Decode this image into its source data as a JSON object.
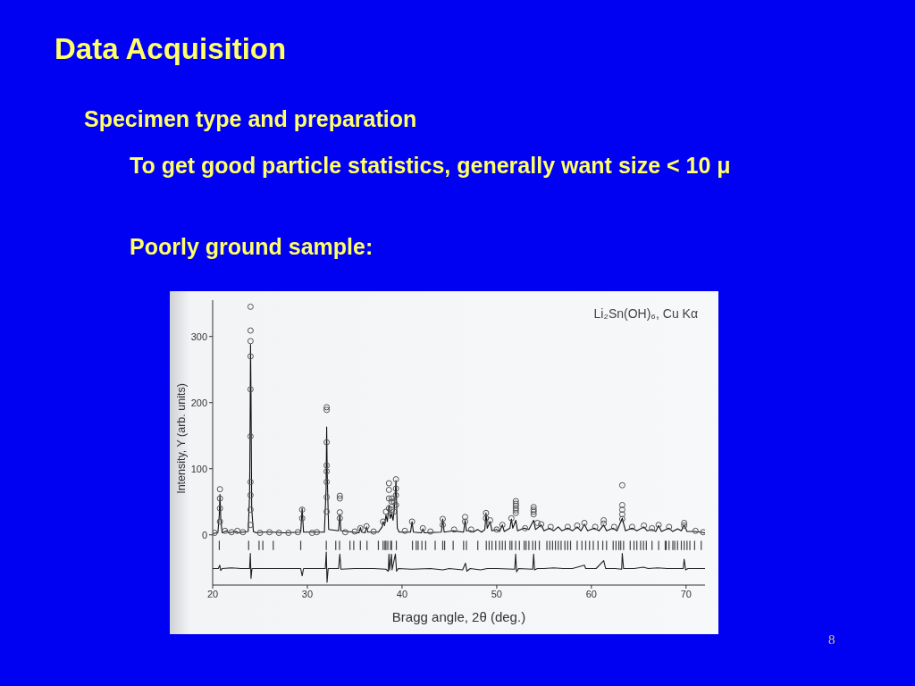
{
  "chart_data": {
    "type": "line",
    "title": "Data Acquisition",
    "subtitle": "Specimen type and preparation",
    "annotations": [
      "To get good particle statistics, generally want size < 10 μ",
      "Poorly ground sample:",
      "Li₂Sn(OH)₆, Cu Kα",
      "8"
    ],
    "xlabel": "Bragg angle, 2θ (deg.)",
    "ylabel": "Intensity, Y (arb. units)",
    "xlim": [
      20,
      72
    ],
    "xticks": [
      20,
      30,
      40,
      50,
      60,
      70
    ],
    "ylim": [
      -76,
      355
    ],
    "yticks": [
      0,
      100,
      200,
      300
    ],
    "series": [
      {
        "type": "scatter",
        "marker": "circle",
        "color": "#555555",
        "x": [
          20.2,
          21.3,
          22.0,
          22.6,
          23.2,
          25.0,
          26.0,
          27.0,
          28.0,
          29.0,
          30.5,
          31.0,
          34.0,
          35.0,
          37.0,
          40.3,
          43.0,
          45.5,
          47.3,
          50.0,
          53.0,
          55.7,
          57.5,
          58.5,
          60.4,
          62.4,
          64.3,
          66.4,
          68.2,
          71.0,
          71.8,
          20.77,
          20.77,
          20.77,
          20.77,
          24.0,
          24.0,
          24.0,
          24.0,
          24.0,
          24.0,
          24.0,
          24.0,
          24.0,
          24.0,
          29.45,
          29.45,
          32.04,
          32.04,
          32.04,
          32.04,
          32.04,
          32.04,
          32.04,
          32.04,
          33.43,
          33.43,
          33.43,
          33.43,
          35.6,
          36.25,
          38.0,
          38.3,
          38.62,
          38.62,
          38.62,
          38.62,
          38.9,
          38.9,
          38.9,
          39.15,
          39.15,
          39.36,
          39.36,
          39.36,
          39.36,
          41.06,
          42.2,
          44.3,
          44.3,
          46.66,
          46.66,
          48.87,
          48.87,
          49.3,
          50.6,
          51.55,
          52.02,
          52.02,
          52.02,
          52.02,
          52.02,
          52.02,
          53.9,
          53.9,
          53.9,
          53.9,
          54.3,
          54.7,
          59.26,
          61.3,
          61.3,
          63.26,
          63.26,
          63.26,
          63.26,
          63.26,
          65.55,
          67.1,
          69.8,
          69.8
        ],
        "values": [
          3,
          6,
          4,
          6,
          4,
          3,
          4,
          3,
          3,
          4,
          3,
          4,
          4,
          5,
          5,
          6,
          5,
          8,
          8,
          8,
          10,
          12,
          12,
          14,
          12,
          12,
          12,
          10,
          12,
          6,
          4,
          69,
          55,
          40,
          20,
          345,
          309,
          293,
          270,
          220,
          149,
          80,
          60,
          38,
          15,
          38,
          25,
          193,
          189,
          140,
          105,
          96,
          80,
          57,
          35,
          59,
          55,
          34,
          25,
          10,
          13,
          20,
          35,
          78,
          68,
          55,
          40,
          55,
          50,
          38,
          50,
          35,
          84,
          70,
          60,
          45,
          20,
          10,
          24,
          15,
          27,
          20,
          33,
          25,
          22,
          15,
          25,
          51,
          47,
          44,
          40,
          37,
          33,
          42,
          38,
          35,
          31,
          18,
          16,
          18,
          22,
          17,
          75,
          45,
          38,
          31,
          24,
          14,
          15,
          18,
          14
        ]
      },
      {
        "color": "#111111",
        "x": [
          20.0,
          20.55,
          20.7,
          20.77,
          20.85,
          21.0,
          21.5,
          21.7,
          22.5,
          22.7,
          23.75,
          23.9,
          23.97,
          24.0,
          24.05,
          24.12,
          24.3,
          24.6,
          25.3,
          26.4,
          27.5,
          29.3,
          29.45,
          29.6,
          31.8,
          31.98,
          32.04,
          32.1,
          32.25,
          33.3,
          33.43,
          33.55,
          35.45,
          35.6,
          35.75,
          36.1,
          36.25,
          36.4,
          37.5,
          37.9,
          38.0,
          38.15,
          38.3,
          38.45,
          38.62,
          38.75,
          38.9,
          39.05,
          39.2,
          39.36,
          39.5,
          39.7,
          40.9,
          41.06,
          41.2,
          42.05,
          42.2,
          42.35,
          44.15,
          44.3,
          44.45,
          45.4,
          46.5,
          46.66,
          46.8,
          47.2,
          47.5,
          48.0,
          48.4,
          48.75,
          48.87,
          49.0,
          49.3,
          49.5,
          50.0,
          50.3,
          50.6,
          50.8,
          51.4,
          51.55,
          51.7,
          52.02,
          52.2,
          52.9,
          53.4,
          53.9,
          54.1,
          54.7,
          55.0,
          55.6,
          56.0,
          56.5,
          56.9,
          57.5,
          58.0,
          58.5,
          58.9,
          59.26,
          59.6,
          60.3,
          60.8,
          61.3,
          61.6,
          62.3,
          62.7,
          63.26,
          63.6,
          64.3,
          64.8,
          65.55,
          65.9,
          66.4,
          66.8,
          67.1,
          67.4,
          68.2,
          68.6,
          69.1,
          69.5,
          69.8,
          70.1,
          70.9,
          71.5,
          72.0
        ],
        "values": [
          2,
          3,
          30,
          61,
          25,
          3,
          6,
          3,
          5,
          3,
          5,
          60,
          200,
          288,
          210,
          40,
          5,
          3,
          4,
          4,
          3,
          4,
          40,
          4,
          4,
          70,
          163,
          90,
          8,
          6,
          31,
          6,
          3,
          11,
          4,
          3,
          12,
          4,
          4,
          12,
          20,
          14,
          30,
          20,
          45,
          25,
          32,
          22,
          40,
          82,
          10,
          4,
          4,
          20,
          4,
          3,
          9,
          3,
          4,
          24,
          4,
          6,
          4,
          22,
          6,
          6,
          4,
          8,
          4,
          8,
          33,
          10,
          20,
          6,
          8,
          5,
          15,
          5,
          10,
          24,
          10,
          22,
          6,
          10,
          8,
          22,
          8,
          15,
          6,
          10,
          6,
          12,
          6,
          10,
          6,
          12,
          6,
          16,
          6,
          10,
          6,
          15,
          6,
          10,
          6,
          25,
          6,
          10,
          6,
          12,
          6,
          8,
          5,
          14,
          5,
          10,
          5,
          9,
          6,
          15,
          5,
          5,
          4,
          3
        ]
      },
      {
        "color": "#222222",
        "x": [
          20.0,
          20.6,
          20.75,
          20.85,
          21.0,
          22.0,
          23.0,
          23.9,
          23.98,
          24.05,
          24.15,
          26.0,
          29.3,
          29.45,
          29.6,
          31.9,
          32.0,
          32.08,
          32.2,
          33.3,
          33.43,
          33.55,
          35.0,
          37.0,
          38.3,
          38.55,
          38.62,
          38.7,
          38.88,
          38.95,
          39.3,
          39.42,
          39.6,
          41.0,
          43.0,
          44.3,
          45.0,
          46.4,
          46.7,
          46.85,
          47.2,
          48.3,
          49.0,
          50.0,
          51.9,
          52.0,
          52.1,
          52.3,
          53.8,
          53.9,
          54.0,
          54.3,
          55.0,
          56.0,
          57.0,
          58.0,
          59.26,
          59.4,
          60.5,
          61.3,
          61.5,
          62.5,
          63.2,
          63.26,
          63.4,
          64.5,
          65.5,
          66.0,
          67.0,
          68.0,
          69.7,
          69.8,
          69.95,
          70.2,
          72.0
        ],
        "values": [
          -51,
          -51,
          -46,
          -54,
          -51,
          -50,
          -51,
          -51,
          -28,
          -66,
          -51,
          -51,
          -51,
          -62,
          -51,
          -51,
          -26,
          -72,
          -51,
          -51,
          -29,
          -52,
          -51,
          -51,
          -52,
          -55,
          -29,
          -53,
          -29,
          -53,
          -29,
          -55,
          -51,
          -52,
          -51,
          -53,
          -51,
          -53,
          -43,
          -55,
          -51,
          -53,
          -51,
          -51,
          -52,
          -29,
          -56,
          -51,
          -52,
          -29,
          -53,
          -51,
          -51,
          -50,
          -51,
          -51,
          -46,
          -51,
          -51,
          -39,
          -51,
          -51,
          -52,
          -28,
          -51,
          -51,
          -49,
          -51,
          -50,
          -51,
          -51,
          -37,
          -53,
          -51,
          -51
        ]
      },
      {
        "type": "bar",
        "color": "#444444",
        "x": [
          20.7,
          23.8,
          24.9,
          25.3,
          26.4,
          29.3,
          32.0,
          33.0,
          33.4,
          34.5,
          34.9,
          35.6,
          36.3,
          37.5,
          38.0,
          38.2,
          38.3,
          38.5,
          38.8,
          38.9,
          39.4,
          41.1,
          41.5,
          41.7,
          42.1,
          42.5,
          43.5,
          44.3,
          44.5,
          45.4,
          46.5,
          46.8,
          48.0,
          48.9,
          49.2,
          49.5,
          49.9,
          50.3,
          50.6,
          50.9,
          51.4,
          51.6,
          52.0,
          52.4,
          52.9,
          53.1,
          53.4,
          53.8,
          54.1,
          54.5,
          55.3,
          55.6,
          55.9,
          56.2,
          56.5,
          56.8,
          57.2,
          57.5,
          57.8,
          58.5,
          59.0,
          59.4,
          59.8,
          60.2,
          60.7,
          61.2,
          61.6,
          62.3,
          62.6,
          62.9,
          63.1,
          63.4,
          64.1,
          64.5,
          64.8,
          65.2,
          65.5,
          65.8,
          66.4,
          67.1,
          67.8,
          67.9,
          68.2,
          68.6,
          68.8,
          69.1,
          69.5,
          69.8,
          70.1,
          70.4,
          70.9,
          71.6
        ],
        "base": [
          -23,
          -23,
          -23,
          -23,
          -23,
          -23,
          -23,
          -23,
          -23,
          -23,
          -23,
          -23,
          -23,
          -23,
          -23,
          -23,
          -23,
          -23,
          -23,
          -23,
          -23,
          -23,
          -23,
          -23,
          -23,
          -23,
          -23,
          -23,
          -23,
          -23,
          -23,
          -23,
          -23,
          -23,
          -23,
          -23,
          -23,
          -23,
          -23,
          -23,
          -23,
          -23,
          -23,
          -23,
          -23,
          -23,
          -23,
          -23,
          -23,
          -23,
          -23,
          -23,
          -23,
          -23,
          -23,
          -23,
          -23,
          -23,
          -23,
          -23,
          -23,
          -23,
          -23,
          -23,
          -23,
          -23,
          -23,
          -23,
          -23,
          -23,
          -23,
          -23,
          -23,
          -23,
          -23,
          -23,
          -23,
          -23,
          -23,
          -23,
          -23,
          -23,
          -23,
          -23,
          -23,
          -23,
          -23,
          -23,
          -23,
          -23,
          -23,
          -23
        ],
        "values": [
          14,
          14,
          14,
          14,
          14,
          14,
          14,
          14,
          14,
          14,
          14,
          14,
          14,
          14,
          14,
          14,
          14,
          14,
          14,
          14,
          14,
          14,
          14,
          14,
          14,
          14,
          14,
          14,
          14,
          14,
          14,
          14,
          14,
          14,
          14,
          14,
          14,
          14,
          14,
          14,
          14,
          14,
          14,
          14,
          14,
          14,
          14,
          14,
          14,
          14,
          14,
          14,
          14,
          14,
          14,
          14,
          14,
          14,
          14,
          14,
          14,
          14,
          14,
          14,
          14,
          14,
          14,
          14,
          14,
          14,
          14,
          14,
          14,
          14,
          14,
          14,
          14,
          14,
          14,
          14,
          14,
          14,
          14,
          14,
          14,
          14,
          14,
          14,
          14,
          14,
          14,
          14
        ]
      }
    ]
  }
}
